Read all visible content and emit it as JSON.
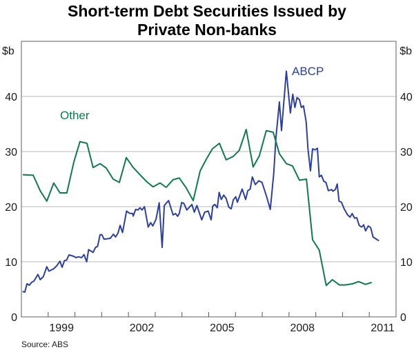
{
  "chart_data": {
    "type": "line",
    "title_lines": [
      "Short-term Debt Securities Issued by",
      "Private Non-banks"
    ],
    "ylabel_left": "$b",
    "ylabel_right": "$b",
    "source": "Source: ABS",
    "xlim": [
      1998,
      2012
    ],
    "ylim": [
      0,
      50
    ],
    "yticks": [
      0,
      10,
      20,
      30,
      40
    ],
    "xtick_labels": [
      "1999",
      "2002",
      "2005",
      "2008",
      "2011"
    ],
    "grid": "horizontal",
    "series": [
      {
        "name": "ABCP",
        "color": "#2a3f9e",
        "points": [
          [
            1998.04,
            4.6
          ],
          [
            1998.13,
            4.5
          ],
          [
            1998.21,
            6.0
          ],
          [
            1998.3,
            5.75
          ],
          [
            1998.39,
            6.3
          ],
          [
            1998.47,
            6.5
          ],
          [
            1998.62,
            7.7
          ],
          [
            1998.7,
            6.75
          ],
          [
            1998.82,
            7.3
          ],
          [
            1998.95,
            9.1
          ],
          [
            1999.03,
            8.3
          ],
          [
            1999.2,
            8.7
          ],
          [
            1999.31,
            9.2
          ],
          [
            1999.44,
            10.1
          ],
          [
            1999.52,
            9.0
          ],
          [
            1999.61,
            10.2
          ],
          [
            1999.69,
            10.3
          ],
          [
            1999.78,
            11.25
          ],
          [
            1999.95,
            11.0
          ],
          [
            2000.04,
            10.75
          ],
          [
            2000.12,
            10.9
          ],
          [
            2000.25,
            10.75
          ],
          [
            2000.34,
            11.3
          ],
          [
            2000.44,
            10.0
          ],
          [
            2000.51,
            12.2
          ],
          [
            2000.68,
            11.7
          ],
          [
            2000.77,
            12.6
          ],
          [
            2000.85,
            12.8
          ],
          [
            2000.94,
            14.9
          ],
          [
            2001.01,
            14.9
          ],
          [
            2001.09,
            14.1
          ],
          [
            2001.32,
            14.25
          ],
          [
            2001.44,
            15.0
          ],
          [
            2001.52,
            14.5
          ],
          [
            2001.61,
            15.2
          ],
          [
            2001.69,
            16.6
          ],
          [
            2001.78,
            15.3
          ],
          [
            2001.93,
            19.2
          ],
          [
            2002.04,
            18.8
          ],
          [
            2002.16,
            18.75
          ],
          [
            2002.18,
            18.3
          ],
          [
            2002.27,
            19.5
          ],
          [
            2002.36,
            19.4
          ],
          [
            2002.43,
            19.8
          ],
          [
            2002.51,
            19.4
          ],
          [
            2002.6,
            20.0
          ],
          [
            2002.74,
            16.3
          ],
          [
            2002.83,
            17.1
          ],
          [
            2002.91,
            16.5
          ],
          [
            2003.03,
            17.7
          ],
          [
            2003.15,
            20.7
          ],
          [
            2003.26,
            12.6
          ],
          [
            2003.34,
            20.2
          ],
          [
            2003.5,
            21.1
          ],
          [
            2003.67,
            18.5
          ],
          [
            2003.76,
            18.75
          ],
          [
            2003.84,
            18.25
          ],
          [
            2003.9,
            18.75
          ],
          [
            2003.99,
            20.75
          ],
          [
            2004.07,
            20.6
          ],
          [
            2004.18,
            19.4
          ],
          [
            2004.37,
            20.4
          ],
          [
            2004.46,
            19.0
          ],
          [
            2004.56,
            20.2
          ],
          [
            2004.74,
            17.6
          ],
          [
            2004.85,
            19.0
          ],
          [
            2004.98,
            19.2
          ],
          [
            2005.09,
            17.6
          ],
          [
            2005.15,
            20.1
          ],
          [
            2005.23,
            20.4
          ],
          [
            2005.32,
            19.8
          ],
          [
            2005.39,
            22.6
          ],
          [
            2005.47,
            21.3
          ],
          [
            2005.56,
            22.1
          ],
          [
            2005.65,
            21.5
          ],
          [
            2005.75,
            19.9
          ],
          [
            2005.84,
            19.6
          ],
          [
            2005.92,
            21.25
          ],
          [
            2006.01,
            21.8
          ],
          [
            2006.07,
            20.8
          ],
          [
            2006.25,
            23.2
          ],
          [
            2006.38,
            21.3
          ],
          [
            2006.46,
            22.9
          ],
          [
            2006.55,
            23.2
          ],
          [
            2006.63,
            25.4
          ],
          [
            2006.74,
            24.0
          ],
          [
            2006.87,
            24.7
          ],
          [
            2006.99,
            24.4
          ],
          [
            2007.17,
            21.7
          ],
          [
            2007.3,
            19.5
          ],
          [
            2007.43,
            26.0
          ],
          [
            2007.51,
            32.5
          ],
          [
            2007.64,
            39.0
          ],
          [
            2007.72,
            33.8
          ],
          [
            2007.9,
            44.6
          ],
          [
            2008.05,
            37.0
          ],
          [
            2008.14,
            40.4
          ],
          [
            2008.22,
            38.0
          ],
          [
            2008.3,
            39.8
          ],
          [
            2008.39,
            39.4
          ],
          [
            2008.46,
            38.0
          ],
          [
            2008.54,
            38.3
          ],
          [
            2008.64,
            35.4
          ],
          [
            2008.71,
            30.4
          ],
          [
            2008.8,
            26.5
          ],
          [
            2008.88,
            30.5
          ],
          [
            2008.97,
            30.3
          ],
          [
            2009.06,
            30.6
          ],
          [
            2009.13,
            25.4
          ],
          [
            2009.21,
            25.7
          ],
          [
            2009.3,
            24.6
          ],
          [
            2009.38,
            24.4
          ],
          [
            2009.47,
            22.9
          ],
          [
            2009.59,
            23.1
          ],
          [
            2009.64,
            22.8
          ],
          [
            2009.73,
            23.1
          ],
          [
            2009.8,
            24.1
          ],
          [
            2009.87,
            21.0
          ],
          [
            2009.96,
            20.8
          ],
          [
            2010.06,
            19.6
          ],
          [
            2010.19,
            18.5
          ],
          [
            2010.28,
            18.1
          ],
          [
            2010.36,
            18.75
          ],
          [
            2010.45,
            17.9
          ],
          [
            2010.53,
            18.0
          ],
          [
            2010.62,
            16.6
          ],
          [
            2010.71,
            16.3
          ],
          [
            2010.79,
            16.7
          ],
          [
            2010.86,
            15.6
          ],
          [
            2010.96,
            16.5
          ],
          [
            2011.05,
            16.2
          ],
          [
            2011.14,
            14.5
          ],
          [
            2011.22,
            14.25
          ],
          [
            2011.36,
            13.8
          ]
        ]
      },
      {
        "name": "Other",
        "color": "#0e7a4a",
        "points": [
          [
            1998.05,
            25.8
          ],
          [
            1998.44,
            25.7
          ],
          [
            1998.7,
            22.9
          ],
          [
            1998.95,
            21.0
          ],
          [
            1999.21,
            24.3
          ],
          [
            1999.44,
            22.5
          ],
          [
            1999.7,
            22.5
          ],
          [
            1999.96,
            28.1
          ],
          [
            2000.19,
            31.8
          ],
          [
            2000.45,
            31.5
          ],
          [
            2000.68,
            27.1
          ],
          [
            2000.94,
            27.8
          ],
          [
            2001.17,
            27.0
          ],
          [
            2001.43,
            25.0
          ],
          [
            2001.66,
            24.4
          ],
          [
            2001.92,
            28.9
          ],
          [
            2002.18,
            27.1
          ],
          [
            2002.43,
            25.8
          ],
          [
            2002.69,
            24.5
          ],
          [
            2002.92,
            23.6
          ],
          [
            2003.18,
            24.3
          ],
          [
            2003.41,
            23.5
          ],
          [
            2003.67,
            24.9
          ],
          [
            2003.9,
            25.2
          ],
          [
            2004.16,
            23.4
          ],
          [
            2004.42,
            21.1
          ],
          [
            2004.68,
            26.5
          ],
          [
            2004.93,
            28.8
          ],
          [
            2005.14,
            30.5
          ],
          [
            2005.4,
            31.5
          ],
          [
            2005.65,
            28.5
          ],
          [
            2005.91,
            29.1
          ],
          [
            2006.14,
            30.2
          ],
          [
            2006.4,
            34.0
          ],
          [
            2006.66,
            27.2
          ],
          [
            2006.89,
            29.2
          ],
          [
            2007.15,
            33.8
          ],
          [
            2007.41,
            33.5
          ],
          [
            2007.64,
            29.6
          ],
          [
            2007.9,
            27.8
          ],
          [
            2008.13,
            27.4
          ],
          [
            2008.39,
            24.8
          ],
          [
            2008.65,
            25.0
          ],
          [
            2008.88,
            14.0
          ],
          [
            2009.13,
            12.1
          ],
          [
            2009.39,
            5.7
          ],
          [
            2009.62,
            6.75
          ],
          [
            2009.88,
            5.8
          ],
          [
            2010.11,
            5.8
          ],
          [
            2010.37,
            6.0
          ],
          [
            2010.6,
            6.4
          ],
          [
            2010.86,
            5.9
          ],
          [
            2011.09,
            6.25
          ]
        ]
      }
    ]
  }
}
